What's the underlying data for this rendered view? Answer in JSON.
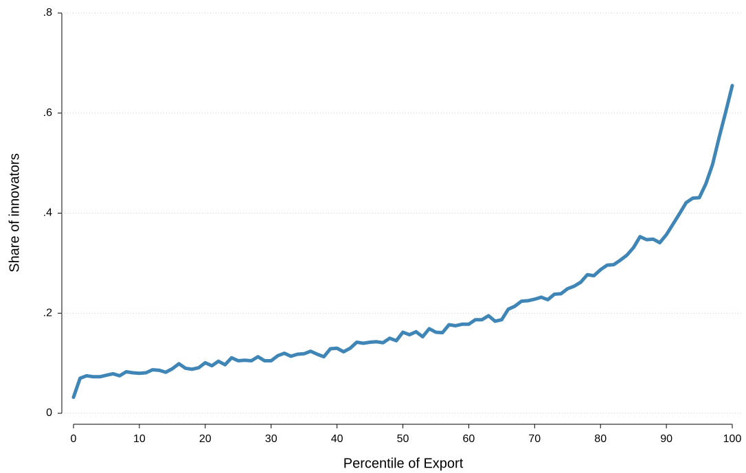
{
  "chart_data": {
    "type": "line",
    "xlabel": "Percentile of Export",
    "ylabel": "Share of innovators",
    "color": "#3f86b6",
    "grid": true,
    "x": [
      0,
      1,
      2,
      3,
      4,
      5,
      6,
      7,
      8,
      9,
      10,
      11,
      12,
      13,
      14,
      15,
      16,
      17,
      18,
      19,
      20,
      21,
      22,
      23,
      24,
      25,
      26,
      27,
      28,
      29,
      30,
      31,
      32,
      33,
      34,
      35,
      36,
      37,
      38,
      39,
      40,
      41,
      42,
      43,
      44,
      45,
      46,
      47,
      48,
      49,
      50,
      51,
      52,
      53,
      54,
      55,
      56,
      57,
      58,
      59,
      60,
      61,
      62,
      63,
      64,
      65,
      66,
      67,
      68,
      69,
      70,
      71,
      72,
      73,
      74,
      75,
      76,
      77,
      78,
      79,
      80,
      81,
      82,
      83,
      84,
      85,
      86,
      87,
      88,
      89,
      90,
      91,
      92,
      93,
      94,
      95,
      96,
      97,
      98,
      99,
      100
    ],
    "values": [
      0.032,
      0.07,
      0.075,
      0.073,
      0.073,
      0.076,
      0.079,
      0.075,
      0.083,
      0.081,
      0.08,
      0.081,
      0.087,
      0.086,
      0.082,
      0.089,
      0.099,
      0.09,
      0.088,
      0.091,
      0.101,
      0.095,
      0.104,
      0.097,
      0.111,
      0.105,
      0.106,
      0.105,
      0.113,
      0.105,
      0.105,
      0.115,
      0.12,
      0.114,
      0.118,
      0.119,
      0.124,
      0.118,
      0.113,
      0.129,
      0.13,
      0.123,
      0.13,
      0.142,
      0.14,
      0.142,
      0.143,
      0.141,
      0.15,
      0.145,
      0.162,
      0.157,
      0.163,
      0.153,
      0.169,
      0.162,
      0.161,
      0.177,
      0.175,
      0.178,
      0.178,
      0.187,
      0.187,
      0.195,
      0.184,
      0.187,
      0.208,
      0.214,
      0.224,
      0.225,
      0.228,
      0.232,
      0.227,
      0.238,
      0.239,
      0.249,
      0.254,
      0.262,
      0.277,
      0.275,
      0.287,
      0.296,
      0.297,
      0.306,
      0.316,
      0.331,
      0.353,
      0.347,
      0.348,
      0.341,
      0.357,
      0.378,
      0.399,
      0.421,
      0.43,
      0.431,
      0.459,
      0.497,
      0.551,
      0.602,
      0.655
    ],
    "xlim": [
      0,
      100
    ],
    "xticks": [
      0,
      10,
      20,
      30,
      40,
      50,
      60,
      70,
      80,
      90,
      100
    ],
    "ylim": [
      0,
      0.8
    ],
    "yticks": [
      0,
      {
        "value": 0.2,
        "label": ".2"
      },
      {
        "value": 0.4,
        "label": ".4"
      },
      {
        "value": 0.6,
        "label": ".6"
      },
      {
        "value": 0.8,
        "label": ".8"
      }
    ]
  }
}
